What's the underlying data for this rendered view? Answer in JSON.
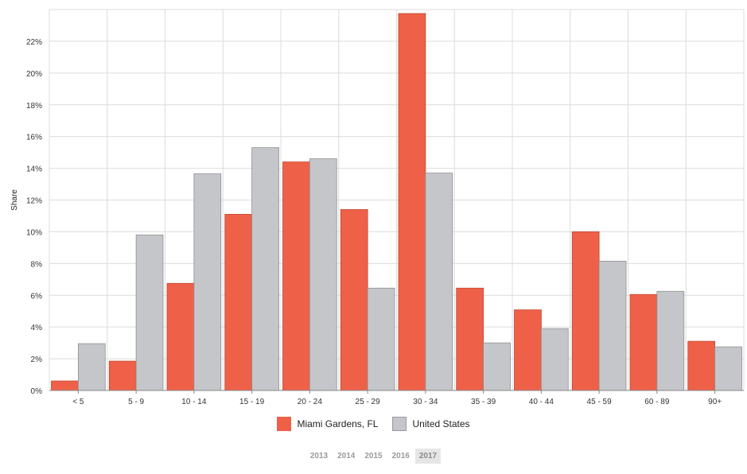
{
  "colors": {
    "miami": "#ee6148",
    "us": "#c5c6ca",
    "grid": "#dcdcdc",
    "axis": "#888888"
  },
  "legend": [
    {
      "label": "Miami Gardens, FL",
      "color": "#ee6148"
    },
    {
      "label": "United States",
      "color": "#c5c6ca"
    }
  ],
  "years": [
    "2013",
    "2014",
    "2015",
    "2016",
    "2017"
  ],
  "selected_year": "2017",
  "chart_data": {
    "type": "bar",
    "ylabel": "Share",
    "ylim": [
      0,
      24
    ],
    "yticks": [
      0,
      2,
      4,
      6,
      8,
      10,
      12,
      14,
      16,
      18,
      20,
      22
    ],
    "ytick_labels": [
      "0%",
      "2%",
      "4%",
      "6%",
      "8%",
      "10%",
      "12%",
      "14%",
      "16%",
      "18%",
      "20%",
      "22%"
    ],
    "grid": true,
    "legend_position": "bottom",
    "categories": [
      "< 5",
      "5 - 9",
      "10 - 14",
      "15 - 19",
      "20 - 24",
      "25 - 29",
      "30 - 34",
      "35 - 39",
      "40 - 44",
      "45 - 59",
      "60 - 89",
      "90+"
    ],
    "series": [
      {
        "name": "Miami Gardens, FL",
        "values": [
          0.6,
          1.85,
          6.75,
          11.1,
          14.4,
          11.4,
          23.75,
          6.45,
          5.08,
          10.0,
          6.05,
          3.1
        ]
      },
      {
        "name": "United States",
        "values": [
          2.95,
          9.8,
          13.65,
          15.3,
          14.6,
          6.45,
          13.7,
          3.0,
          3.9,
          8.15,
          6.25,
          2.75
        ]
      }
    ]
  }
}
